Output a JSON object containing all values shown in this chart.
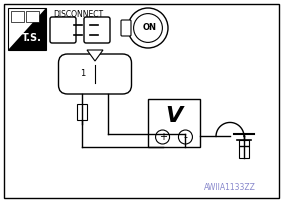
{
  "background_color": "#ffffff",
  "line_color": "#000000",
  "watermark_text": "AWIIA1133ZZ",
  "watermark_color": "#8888cc",
  "disconnect_text": "DISCONNECT",
  "on_text": "ON",
  "ts_text": "T.S.",
  "pin1_text": "1",
  "volt_text": "V",
  "plus_text": "+",
  "minus_text": "-"
}
